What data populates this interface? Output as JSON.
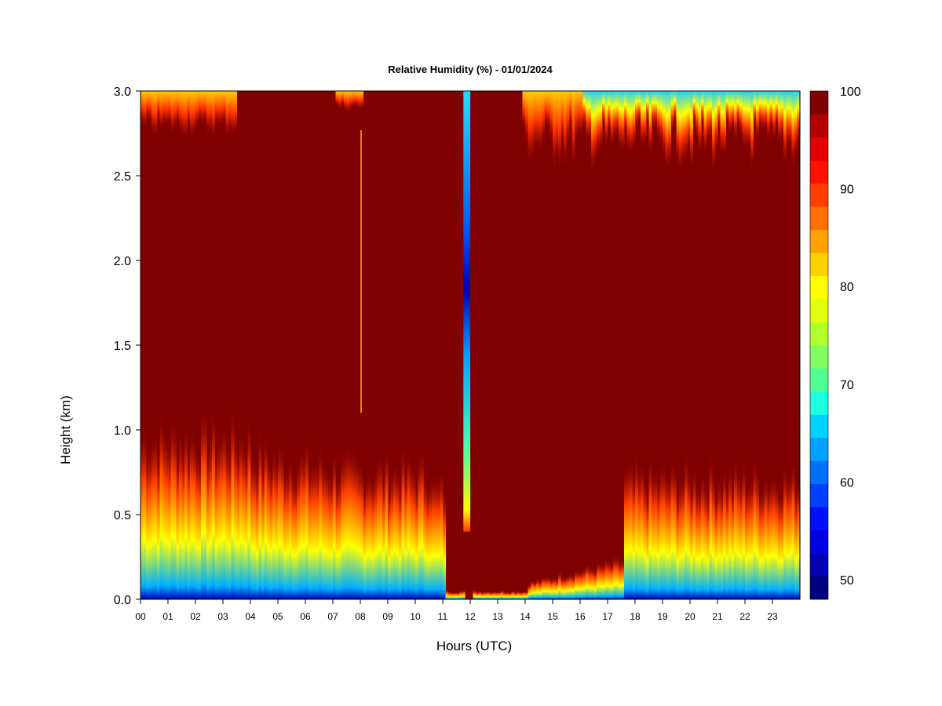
{
  "chart_data": {
    "type": "heatmap",
    "title": "Relative Humidity (%) - 01/01/2024",
    "xlabel": "Hours (UTC)",
    "ylabel": "Height (km)",
    "xlim": [
      0,
      24
    ],
    "ylim": [
      0,
      3.0
    ],
    "x_tick_labels": [
      "00",
      "01",
      "02",
      "03",
      "04",
      "05",
      "06",
      "07",
      "08",
      "09",
      "10",
      "11",
      "12",
      "13",
      "14",
      "15",
      "16",
      "17",
      "18",
      "19",
      "20",
      "21",
      "22",
      "23"
    ],
    "y_tick_labels": [
      "0.0",
      "0.5",
      "1.0",
      "1.5",
      "2.0",
      "2.5",
      "3.0"
    ],
    "y_ticks": [
      0,
      0.5,
      1.0,
      1.5,
      2.0,
      2.5,
      3.0
    ],
    "colorbar": {
      "min": 48,
      "max": 100,
      "tick_values": [
        50,
        60,
        70,
        80,
        90,
        100
      ],
      "tick_labels": [
        "50",
        "60",
        "70",
        "80",
        "90",
        "100"
      ],
      "colors": [
        "#000080",
        "#0000b0",
        "#0000e0",
        "#0010ff",
        "#0040ff",
        "#0070ff",
        "#00a0ff",
        "#00d0ff",
        "#20ffe0",
        "#50ff90",
        "#80ff60",
        "#b0ff30",
        "#e0ff10",
        "#ffff00",
        "#ffd000",
        "#ffa000",
        "#ff7000",
        "#ff4000",
        "#ff1000",
        "#e00000",
        "#b00000",
        "#800000"
      ]
    },
    "grid": false,
    "description_values": {
      "dominant_value": 100,
      "hour_range_low_humidity_column": [
        11.75,
        12.0
      ]
    }
  }
}
